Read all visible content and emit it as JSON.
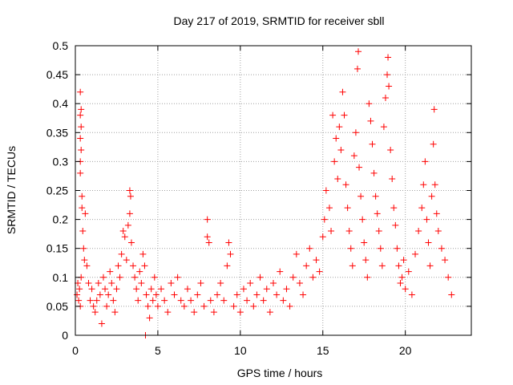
{
  "chart_data": {
    "type": "scatter",
    "title": "Day 217 of 2019, SRMTID for receiver sbll",
    "xlabel": "GPS time / hours",
    "ylabel": "SRMTID / TECUs",
    "xlim": [
      0,
      24
    ],
    "ylim": [
      0,
      0.5
    ],
    "x_ticks": [
      0,
      5,
      10,
      15,
      20
    ],
    "x_tick_labels": [
      "0",
      "5",
      "10",
      "15",
      "20"
    ],
    "y_ticks": [
      0,
      0.05,
      0.1,
      0.15,
      0.2,
      0.25,
      0.3,
      0.35,
      0.4,
      0.45,
      0.5
    ],
    "y_tick_labels": [
      "0",
      "0.05",
      "0.1",
      "0.15",
      "0.2",
      "0.25",
      "0.3",
      "0.35",
      "0.4",
      "0.45",
      "0.5"
    ],
    "grid": true,
    "marker": "+",
    "marker_color": "#ff0000",
    "series": [
      {
        "name": "SRMTID",
        "points": [
          [
            0.1,
            0.07
          ],
          [
            0.15,
            0.09
          ],
          [
            0.2,
            0.06
          ],
          [
            0.25,
            0.08
          ],
          [
            0.3,
            0.05
          ],
          [
            0.35,
            0.1
          ],
          [
            0.3,
            0.42
          ],
          [
            0.35,
            0.39
          ],
          [
            0.3,
            0.38
          ],
          [
            0.35,
            0.36
          ],
          [
            0.3,
            0.34
          ],
          [
            0.35,
            0.32
          ],
          [
            0.3,
            0.3
          ],
          [
            0.3,
            0.28
          ],
          [
            0.4,
            0.24
          ],
          [
            0.4,
            0.22
          ],
          [
            0.45,
            0.18
          ],
          [
            0.5,
            0.15
          ],
          [
            0.6,
            0.21
          ],
          [
            0.55,
            0.13
          ],
          [
            0.7,
            0.12
          ],
          [
            0.8,
            0.09
          ],
          [
            0.9,
            0.06
          ],
          [
            1.0,
            0.08
          ],
          [
            1.1,
            0.05
          ],
          [
            1.2,
            0.04
          ],
          [
            1.3,
            0.06
          ],
          [
            1.4,
            0.09
          ],
          [
            1.5,
            0.07
          ],
          [
            1.6,
            0.02
          ],
          [
            1.7,
            0.1
          ],
          [
            1.8,
            0.08
          ],
          [
            1.9,
            0.05
          ],
          [
            2.0,
            0.07
          ],
          [
            2.1,
            0.11
          ],
          [
            2.2,
            0.09
          ],
          [
            2.3,
            0.06
          ],
          [
            2.4,
            0.04
          ],
          [
            2.5,
            0.08
          ],
          [
            2.6,
            0.12
          ],
          [
            2.7,
            0.1
          ],
          [
            2.8,
            0.14
          ],
          [
            2.9,
            0.18
          ],
          [
            3.0,
            0.17
          ],
          [
            3.1,
            0.13
          ],
          [
            3.2,
            0.19
          ],
          [
            3.3,
            0.25
          ],
          [
            3.35,
            0.24
          ],
          [
            3.3,
            0.21
          ],
          [
            3.4,
            0.16
          ],
          [
            3.5,
            0.12
          ],
          [
            3.6,
            0.1
          ],
          [
            3.7,
            0.08
          ],
          [
            3.8,
            0.06
          ],
          [
            3.9,
            0.11
          ],
          [
            4.0,
            0.09
          ],
          [
            4.1,
            0.14
          ],
          [
            4.2,
            0.12
          ],
          [
            4.25,
            0.0
          ],
          [
            4.3,
            0.07
          ],
          [
            4.4,
            0.05
          ],
          [
            4.5,
            0.03
          ],
          [
            4.6,
            0.08
          ],
          [
            4.7,
            0.06
          ],
          [
            4.8,
            0.1
          ],
          [
            4.9,
            0.07
          ],
          [
            5.0,
            0.05
          ],
          [
            5.2,
            0.08
          ],
          [
            5.4,
            0.06
          ],
          [
            5.6,
            0.04
          ],
          [
            5.8,
            0.09
          ],
          [
            6.0,
            0.07
          ],
          [
            6.2,
            0.1
          ],
          [
            6.4,
            0.06
          ],
          [
            6.6,
            0.05
          ],
          [
            6.8,
            0.08
          ],
          [
            7.0,
            0.06
          ],
          [
            7.2,
            0.04
          ],
          [
            7.4,
            0.07
          ],
          [
            7.6,
            0.09
          ],
          [
            7.8,
            0.05
          ],
          [
            8.0,
            0.2
          ],
          [
            8.0,
            0.17
          ],
          [
            8.1,
            0.16
          ],
          [
            8.2,
            0.06
          ],
          [
            8.4,
            0.04
          ],
          [
            8.6,
            0.07
          ],
          [
            8.8,
            0.09
          ],
          [
            9.0,
            0.06
          ],
          [
            9.2,
            0.12
          ],
          [
            9.3,
            0.16
          ],
          [
            9.4,
            0.14
          ],
          [
            9.6,
            0.05
          ],
          [
            9.8,
            0.07
          ],
          [
            10.0,
            0.04
          ],
          [
            10.2,
            0.08
          ],
          [
            10.4,
            0.06
          ],
          [
            10.6,
            0.09
          ],
          [
            10.8,
            0.05
          ],
          [
            11.0,
            0.07
          ],
          [
            11.2,
            0.1
          ],
          [
            11.4,
            0.06
          ],
          [
            11.6,
            0.08
          ],
          [
            11.8,
            0.04
          ],
          [
            12.0,
            0.09
          ],
          [
            12.2,
            0.07
          ],
          [
            12.4,
            0.11
          ],
          [
            12.6,
            0.06
          ],
          [
            12.8,
            0.08
          ],
          [
            13.0,
            0.05
          ],
          [
            13.2,
            0.1
          ],
          [
            13.4,
            0.14
          ],
          [
            13.6,
            0.09
          ],
          [
            13.8,
            0.07
          ],
          [
            14.0,
            0.12
          ],
          [
            14.2,
            0.15
          ],
          [
            14.4,
            0.1
          ],
          [
            14.6,
            0.13
          ],
          [
            14.8,
            0.11
          ],
          [
            15.0,
            0.17
          ],
          [
            15.1,
            0.2
          ],
          [
            15.2,
            0.25
          ],
          [
            15.4,
            0.22
          ],
          [
            15.5,
            0.18
          ],
          [
            15.6,
            0.38
          ],
          [
            15.7,
            0.3
          ],
          [
            15.8,
            0.34
          ],
          [
            15.9,
            0.27
          ],
          [
            16.0,
            0.36
          ],
          [
            16.1,
            0.32
          ],
          [
            16.2,
            0.42
          ],
          [
            16.3,
            0.38
          ],
          [
            16.4,
            0.26
          ],
          [
            16.5,
            0.22
          ],
          [
            16.6,
            0.18
          ],
          [
            16.7,
            0.15
          ],
          [
            16.8,
            0.12
          ],
          [
            16.9,
            0.31
          ],
          [
            17.0,
            0.35
          ],
          [
            17.1,
            0.46
          ],
          [
            17.15,
            0.49
          ],
          [
            17.2,
            0.29
          ],
          [
            17.3,
            0.24
          ],
          [
            17.4,
            0.2
          ],
          [
            17.5,
            0.16
          ],
          [
            17.6,
            0.13
          ],
          [
            17.7,
            0.1
          ],
          [
            17.8,
            0.4
          ],
          [
            17.9,
            0.37
          ],
          [
            18.0,
            0.33
          ],
          [
            18.1,
            0.28
          ],
          [
            18.2,
            0.24
          ],
          [
            18.3,
            0.21
          ],
          [
            18.4,
            0.18
          ],
          [
            18.5,
            0.15
          ],
          [
            18.6,
            0.12
          ],
          [
            18.7,
            0.36
          ],
          [
            18.8,
            0.41
          ],
          [
            18.9,
            0.45
          ],
          [
            18.95,
            0.48
          ],
          [
            19.0,
            0.43
          ],
          [
            19.1,
            0.32
          ],
          [
            19.2,
            0.27
          ],
          [
            19.3,
            0.22
          ],
          [
            19.4,
            0.19
          ],
          [
            19.5,
            0.15
          ],
          [
            19.6,
            0.12
          ],
          [
            19.7,
            0.09
          ],
          [
            19.8,
            0.1
          ],
          [
            19.9,
            0.13
          ],
          [
            20.0,
            0.08
          ],
          [
            20.2,
            0.11
          ],
          [
            20.4,
            0.07
          ],
          [
            20.6,
            0.14
          ],
          [
            20.8,
            0.18
          ],
          [
            21.0,
            0.22
          ],
          [
            21.1,
            0.26
          ],
          [
            21.2,
            0.3
          ],
          [
            21.3,
            0.2
          ],
          [
            21.4,
            0.16
          ],
          [
            21.5,
            0.12
          ],
          [
            21.6,
            0.24
          ],
          [
            21.7,
            0.33
          ],
          [
            21.75,
            0.39
          ],
          [
            21.8,
            0.26
          ],
          [
            21.9,
            0.21
          ],
          [
            22.0,
            0.18
          ],
          [
            22.2,
            0.15
          ],
          [
            22.4,
            0.13
          ],
          [
            22.6,
            0.1
          ],
          [
            22.8,
            0.07
          ]
        ]
      }
    ]
  }
}
